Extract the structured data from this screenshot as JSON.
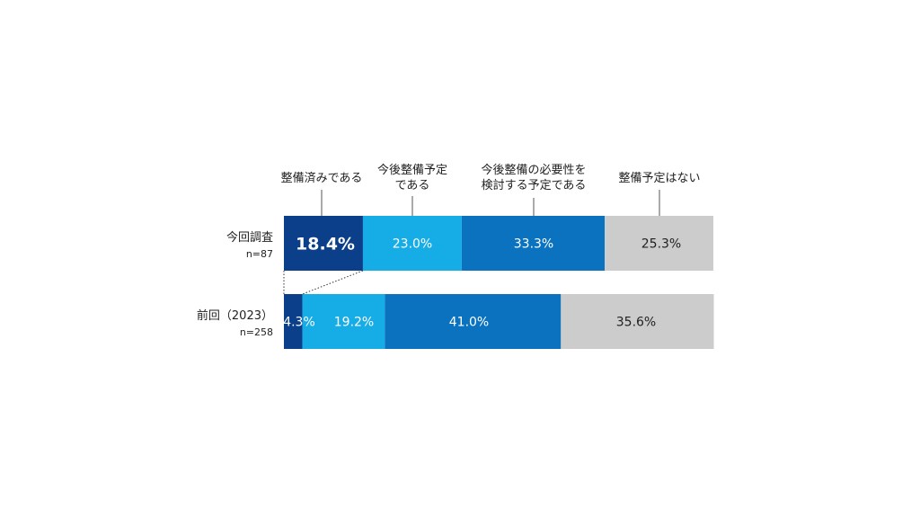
{
  "chart_data": {
    "type": "bar",
    "orientation": "horizontal",
    "stacked": true,
    "xlim": [
      0,
      100
    ],
    "categories": [
      "整備済みである",
      "今後整備予定である",
      "今後整備の必要性を検討する予定である",
      "整備予定はない"
    ],
    "category_labels": [
      [
        "整備済みである"
      ],
      [
        "今後整備予定",
        "である"
      ],
      [
        "今後整備の必要性を",
        "検討する予定である"
      ],
      [
        "整備予定はない"
      ]
    ],
    "colors": [
      "#0b3f8a",
      "#16ace6",
      "#0a72bf",
      "#cccccc"
    ],
    "label_colors": [
      "#ffffff",
      "#ffffff",
      "#ffffff",
      "#222222"
    ],
    "rows": [
      {
        "label": "今回調査",
        "n": "n=87",
        "values": [
          18.4,
          23.0,
          33.3,
          25.3
        ],
        "labels": [
          "18.4%",
          "23.0%",
          "33.3%",
          "25.3%"
        ]
      },
      {
        "label": "前回（2023）",
        "n": "n=258",
        "values": [
          4.3,
          19.2,
          41.0,
          35.6
        ],
        "labels": [
          "4.3%",
          "19.2%",
          "41.0%",
          "35.6%"
        ]
      }
    ]
  }
}
